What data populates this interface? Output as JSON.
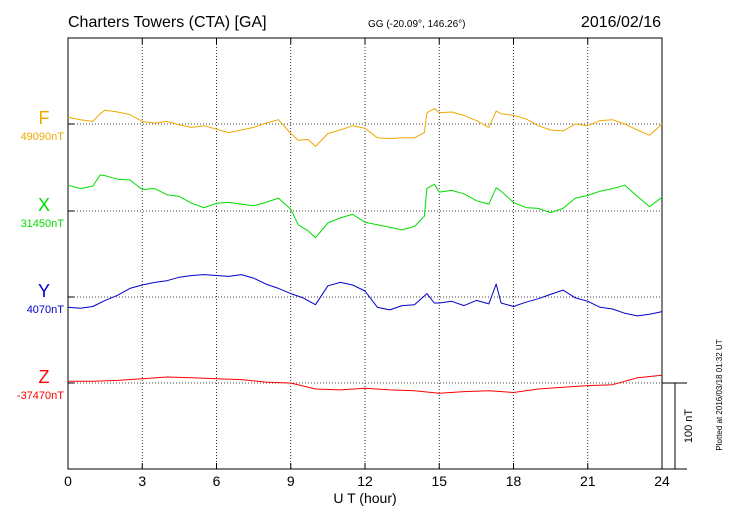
{
  "header": {
    "station": "Charters Towers (CTA)  [GA]",
    "coords": "GG (-20.09°, 146.26°)",
    "date": "2016/02/16"
  },
  "footer": {
    "plotted": "Plotted at 2016/03/18 01:32 UT"
  },
  "chart_data": {
    "type": "line",
    "title": "Charters Towers (CTA)  [GA]",
    "xlabel": "U T (hour)",
    "xlim": [
      0,
      24
    ],
    "xticks": [
      "0",
      "3",
      "6",
      "9",
      "12",
      "15",
      "18",
      "21",
      "24"
    ],
    "grid": true,
    "scale_bar": {
      "label": "100 nT",
      "value_nT": 100
    },
    "series": [
      {
        "name": "F",
        "baseline_label": "49090nT",
        "baseline_nT": 49090,
        "color": "#f0a800",
        "x": [
          0,
          0.5,
          1,
          1.3,
          1.5,
          2,
          2.5,
          3,
          3.5,
          4,
          4.5,
          5,
          5.5,
          6,
          6.5,
          7,
          7.5,
          8,
          8.5,
          9,
          9.3,
          9.7,
          10,
          10.5,
          11,
          11.5,
          12,
          12.5,
          13,
          13.5,
          14,
          14.4,
          14.5,
          14.8,
          15,
          15.5,
          16,
          16.5,
          17,
          17.3,
          17.5,
          18,
          18.5,
          19,
          19.5,
          20,
          20.5,
          21,
          21.5,
          22,
          22.5,
          23,
          23.5,
          24
        ],
        "y": [
          49098,
          49095,
          49093,
          49102,
          49106,
          49104,
          49101,
          49093,
          49091,
          49093,
          49089,
          49086,
          49088,
          49084,
          49080,
          49083,
          49086,
          49091,
          49095,
          49079,
          49071,
          49072,
          49064,
          49079,
          49083,
          49088,
          49085,
          49074,
          49073,
          49074,
          49074,
          49080,
          49103,
          49108,
          49103,
          49104,
          49100,
          49094,
          49086,
          49105,
          49102,
          49100,
          49096,
          49088,
          49083,
          49082,
          49090,
          49088,
          49094,
          49095,
          49090,
          49083,
          49077,
          49090
        ]
      },
      {
        "name": "X",
        "baseline_label": "31450nT",
        "baseline_nT": 31450,
        "color": "#00dd00",
        "x": [
          0,
          0.5,
          1,
          1.3,
          1.5,
          2,
          2.5,
          3,
          3.5,
          4,
          4.5,
          5,
          5.5,
          6,
          6.5,
          7,
          7.5,
          8,
          8.5,
          9,
          9.3,
          9.7,
          10,
          10.5,
          11,
          11.5,
          12,
          12.5,
          13,
          13.5,
          14,
          14.4,
          14.5,
          14.8,
          15,
          15.5,
          16,
          16.5,
          17,
          17.3,
          17.5,
          18,
          18.5,
          19,
          19.5,
          20,
          20.5,
          21,
          21.5,
          22,
          22.5,
          23,
          23.5,
          24
        ],
        "y": [
          31480,
          31476,
          31479,
          31492,
          31491,
          31487,
          31486,
          31475,
          31476,
          31469,
          31467,
          31459,
          31454,
          31459,
          31460,
          31458,
          31456,
          31460,
          31465,
          31452,
          31434,
          31427,
          31419,
          31436,
          31442,
          31446,
          31437,
          31434,
          31431,
          31428,
          31432,
          31444,
          31476,
          31481,
          31472,
          31474,
          31470,
          31462,
          31458,
          31477,
          31473,
          31460,
          31454,
          31453,
          31448,
          31453,
          31465,
          31468,
          31473,
          31476,
          31480,
          31467,
          31455,
          31466
        ]
      },
      {
        "name": "Y",
        "baseline_label": "4070nT",
        "baseline_nT": 4070,
        "color": "#0000cc",
        "x": [
          0,
          0.5,
          1,
          1.5,
          2,
          2.5,
          3,
          3.5,
          4,
          4.5,
          5,
          5.5,
          6,
          6.5,
          7,
          7.5,
          8,
          8.5,
          9,
          9.5,
          10,
          10.5,
          11,
          11.5,
          12,
          12.5,
          13,
          13.5,
          14,
          14.5,
          14.8,
          15,
          15.5,
          16,
          16.5,
          17,
          17.3,
          17.5,
          18,
          18.5,
          19,
          19.5,
          20,
          20.5,
          21,
          21.5,
          22,
          22.5,
          23,
          23.5,
          24
        ],
        "y": [
          4058,
          4057,
          4059,
          4066,
          4072,
          4080,
          4084,
          4087,
          4089,
          4093,
          4095,
          4096,
          4095,
          4094,
          4096,
          4092,
          4085,
          4080,
          4074,
          4069,
          4061,
          4083,
          4087,
          4084,
          4077,
          4058,
          4055,
          4060,
          4061,
          4074,
          4063,
          4063,
          4065,
          4060,
          4066,
          4062,
          4085,
          4063,
          4059,
          4064,
          4068,
          4073,
          4078,
          4069,
          4065,
          4058,
          4056,
          4051,
          4048,
          4050,
          4053
        ]
      },
      {
        "name": "Z",
        "baseline_label": "-37470nT",
        "baseline_nT": -37470,
        "color": "#ff0000",
        "x": [
          0,
          1,
          2,
          3,
          4,
          5,
          6,
          7,
          8,
          9,
          10,
          11,
          12,
          13,
          14,
          15,
          16,
          17,
          18,
          19,
          20,
          21,
          22,
          23,
          24
        ],
        "y": [
          -37468,
          -37468,
          -37467,
          -37465,
          -37463,
          -37464,
          -37465,
          -37466,
          -37469,
          -37470,
          -37477,
          -37478,
          -37476,
          -37478,
          -37479,
          -37482,
          -37480,
          -37479,
          -37481,
          -37477,
          -37475,
          -37473,
          -37472,
          -37464,
          -37461
        ]
      }
    ]
  }
}
